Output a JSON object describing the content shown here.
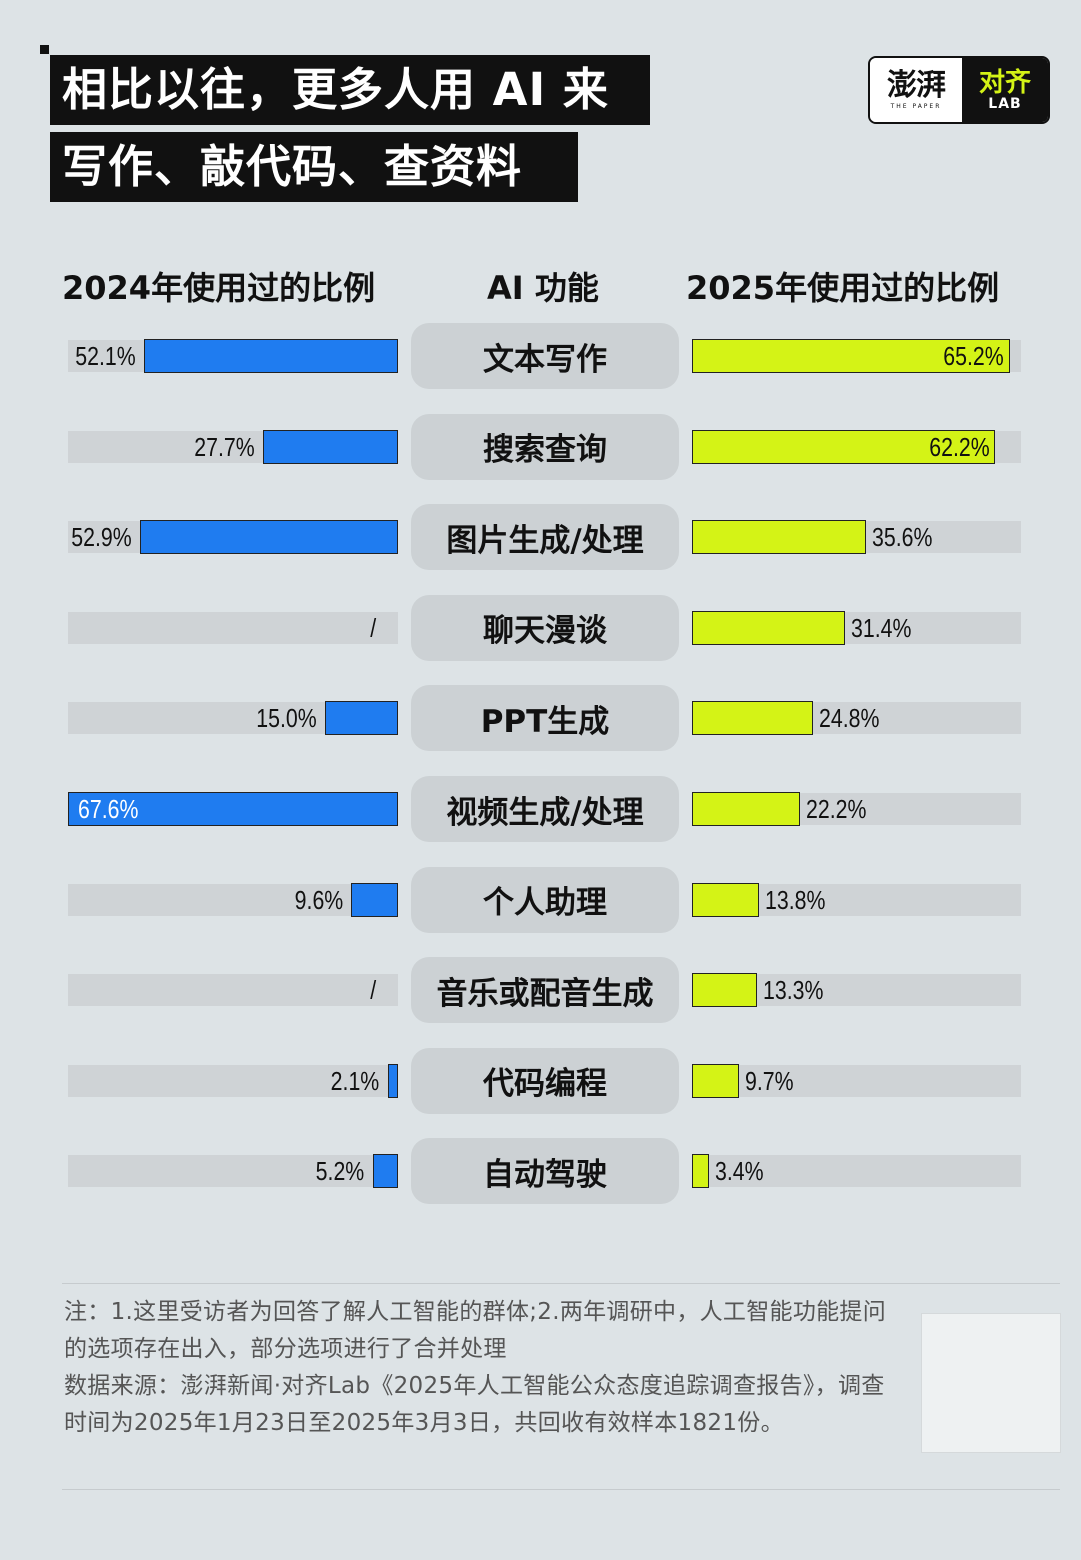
{
  "title": {
    "line1": "相比以往，更多人用 AI 来",
    "line2": "写作、敲代码、查资料"
  },
  "logo": {
    "cn": "澎湃",
    "en": "THE PAPER",
    "lab_cn": "对齐",
    "lab_en": "LAB"
  },
  "headers": {
    "left": "2024年使用过的比例",
    "mid": "AI 功能",
    "right": "2025年使用过的比例"
  },
  "colors": {
    "bar_2024": "#1f7cf0",
    "bar_2025": "#d4f316",
    "track": "#cfd3d6",
    "pill": "#ccd1d4"
  },
  "chart_data": {
    "type": "bar",
    "orientation": "horizontal-butterfly",
    "categories": [
      "文本写作",
      "搜索查询",
      "图片生成/处理",
      "聊天漫谈",
      "PPT生成",
      "视频生成/处理",
      "个人助理",
      "音乐或配音生成",
      "代码编程",
      "自动驾驶"
    ],
    "series": [
      {
        "name": "2024年使用过的比例",
        "values": [
          52.1,
          27.7,
          52.9,
          null,
          15.0,
          67.6,
          9.6,
          null,
          2.1,
          5.2
        ],
        "labels": [
          "52.1%",
          "27.7%",
          "52.9%",
          "/",
          "15.0%",
          "67.6%",
          "9.6%",
          "/",
          "2.1%",
          "5.2%"
        ]
      },
      {
        "name": "2025年使用过的比例",
        "values": [
          65.2,
          62.2,
          35.6,
          31.4,
          24.8,
          22.2,
          13.8,
          13.3,
          9.7,
          3.4
        ],
        "labels": [
          "65.2%",
          "62.2%",
          "35.6%",
          "31.4%",
          "24.8%",
          "22.2%",
          "13.8%",
          "13.3%",
          "9.7%",
          "3.4%"
        ]
      }
    ],
    "xlim": [
      0,
      68
    ]
  },
  "notes": {
    "note1": "注：1.这里受访者为回答了解人工智能的群体;2.两年调研中，人工智能功能提问的选项存在出入，部分选项进行了合并处理",
    "source": "数据来源：澎湃新闻·对齐Lab《2025年人工智能公众态度追踪调查报告》，调查时间为2025年1月23日至2025年3月3日，共回收有效样本1821份。"
  }
}
